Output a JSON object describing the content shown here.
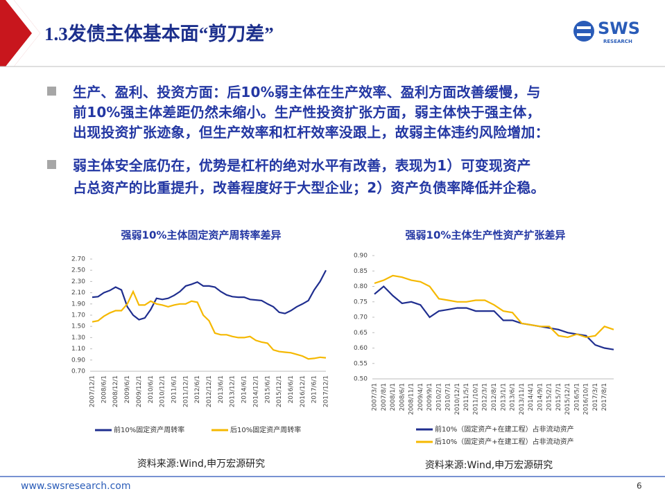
{
  "header": {
    "title": "1.3发债主体基本面“剪刀差”",
    "logo": "SWS",
    "logo_sub": "RESEARCH"
  },
  "bullets": [
    [
      "生产、盈利、投资方面：后10%弱主体在生产效率、盈利方面改善缓慢，与",
      "前10%强主体差距仍然未缩小。生产性投资扩张方面，弱主体快于强主体，",
      "出现投资扩张迹象，但生产效率和杠杆效率没跟上，故弱主体违约风险增加："
    ],
    [
      "弱主体安全底仍在，优势是杠杆的绝对水平有改善，表现为1）可变现资产",
      "占总资产的比重提升，改善程度好于大型企业；2）资产负债率降低并企稳。"
    ]
  ],
  "chart_data": [
    {
      "type": "line",
      "title": "强弱10%主体固定资产周转率差异",
      "categories": [
        "2007/12/1",
        null,
        "2008/6/1",
        null,
        "2008/12/1",
        null,
        "2009/6/1",
        null,
        "2009/12/1",
        null,
        "2010/6/1",
        null,
        "2010/12/1",
        null,
        "2011/6/1",
        null,
        "2011/12/1",
        null,
        "2012/6/1",
        null,
        "2012/12/1",
        null,
        "2013/6/1",
        null,
        "2013/12/1",
        null,
        "2014/6/1",
        null,
        "2014/12/1",
        null,
        "2015/6/1",
        null,
        "2015/12/1",
        null,
        "2016/6/1",
        null,
        "2016/12/1",
        null,
        "2017/6/1",
        null,
        "2017/12/1"
      ],
      "series": [
        {
          "name": "前10%固定资产周转率",
          "color": "#1f2e8f",
          "values": [
            2.02,
            2.03,
            2.1,
            2.14,
            2.2,
            2.15,
            1.85,
            1.7,
            1.62,
            1.65,
            1.8,
            2.0,
            1.98,
            2.0,
            2.05,
            2.12,
            2.22,
            2.25,
            2.29,
            2.22,
            2.22,
            2.2,
            2.12,
            2.06,
            2.03,
            2.02,
            2.02,
            1.98,
            1.97,
            1.96,
            1.9,
            1.85,
            1.75,
            1.73,
            1.78,
            1.85,
            1.9,
            1.96,
            2.15,
            2.3,
            2.5
          ]
        },
        {
          "name": "后10%固定资产周转率",
          "color": "#f5b800",
          "values": [
            1.58,
            1.6,
            1.68,
            1.74,
            1.78,
            1.78,
            1.9,
            2.12,
            1.88,
            1.88,
            1.95,
            1.9,
            1.88,
            1.85,
            1.88,
            1.9,
            1.9,
            1.95,
            1.93,
            1.7,
            1.6,
            1.38,
            1.35,
            1.35,
            1.32,
            1.3,
            1.3,
            1.32,
            1.25,
            1.22,
            1.2,
            1.08,
            1.05,
            1.04,
            1.03,
            1.0,
            0.97,
            0.92,
            0.93,
            0.95,
            0.94
          ]
        }
      ],
      "ylim": [
        0.7,
        2.7
      ],
      "yticks": [
        {
          "value": 0.7,
          "label": "0.70"
        },
        {
          "value": 0.9,
          "label": "0.90"
        },
        {
          "value": 1.1,
          "label": "1.10"
        },
        {
          "value": 1.3,
          "label": "1.30"
        },
        {
          "value": 1.5,
          "label": "1.50"
        },
        {
          "value": 1.7,
          "label": "1.70"
        },
        {
          "value": 1.9,
          "label": "1.90"
        },
        {
          "value": 2.1,
          "label": "2.10"
        },
        {
          "value": 2.3,
          "label": "2.30"
        },
        {
          "value": 2.5,
          "label": "2.50"
        },
        {
          "value": 2.7,
          "label": "2.70"
        }
      ],
      "source": "资料来源:Wind,申万宏源研究"
    },
    {
      "type": "line",
      "title": "强弱10%主体生产性资产扩张差异",
      "categories": [
        "2007/3/1",
        "2007/8/1",
        "2008/1/1",
        "2008/6/1",
        "2008/11/1",
        "2009/4/1",
        "2009/9/1",
        "2010/2/1",
        "2010/7/1",
        "2010/12/1",
        "2011/5/1",
        "2011/10/1",
        "2012/3/1",
        "2012/8/1",
        "2013/1/1",
        "2013/6/1",
        "2013/11/1",
        "2014/4/1",
        "2014/9/1",
        "2015/2/1",
        "2015/7/1",
        "2015/12/1",
        "2016/5/1",
        "2016/10/1",
        "2017/3/1",
        "2017/8/1",
        null
      ],
      "series": [
        {
          "name": "前10%（固定资产+在建工程）占非流动资产",
          "color": "#1f2e8f",
          "values": [
            0.775,
            0.8,
            0.77,
            0.745,
            0.75,
            0.74,
            0.7,
            0.72,
            0.725,
            0.73,
            0.73,
            0.72,
            0.72,
            0.72,
            0.69,
            0.69,
            0.68,
            0.675,
            0.67,
            0.665,
            0.66,
            0.65,
            0.645,
            0.64,
            0.61,
            0.6,
            0.595
          ]
        },
        {
          "name": "后10%（固定资产+在建工程）占非流动资产",
          "color": "#f5b800",
          "values": [
            0.81,
            0.82,
            0.835,
            0.83,
            0.82,
            0.815,
            0.8,
            0.76,
            0.755,
            0.75,
            0.75,
            0.755,
            0.755,
            0.74,
            0.72,
            0.715,
            0.68,
            0.675,
            0.67,
            0.67,
            0.64,
            0.635,
            0.645,
            0.635,
            0.64,
            0.67,
            0.66
          ]
        }
      ],
      "ylim": [
        0.5,
        0.9
      ],
      "yticks": [
        {
          "value": 0.5,
          "label": "0.50"
        },
        {
          "value": 0.55,
          "label": "0.55"
        },
        {
          "value": 0.6,
          "label": "0.60"
        },
        {
          "value": 0.65,
          "label": "0.65"
        },
        {
          "value": 0.7,
          "label": "0.70"
        },
        {
          "value": 0.75,
          "label": "0.75"
        },
        {
          "value": 0.8,
          "label": "0.80"
        },
        {
          "value": 0.85,
          "label": "0.85"
        },
        {
          "value": 0.9,
          "label": "0.90"
        }
      ],
      "source": "资料来源:Wind,申万宏源研究"
    }
  ],
  "footer": {
    "url": "www.swsresearch.com",
    "page": "6"
  }
}
